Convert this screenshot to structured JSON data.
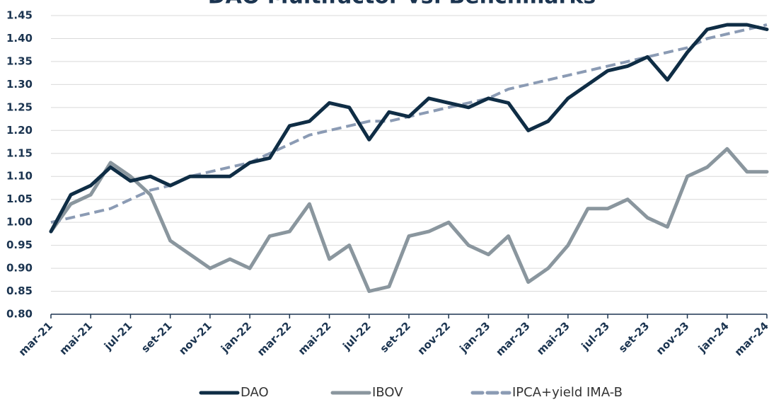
{
  "chart_data": {
    "type": "line",
    "title": "DAO Multifactor vs. Benchmarks",
    "categories": [
      "mar-21",
      null,
      "mai-21",
      null,
      "jul-21",
      null,
      "set-21",
      null,
      "nov-21",
      null,
      "jan-22",
      null,
      "mar-22",
      null,
      "mai-22",
      null,
      "jul-22",
      null,
      "set-22",
      null,
      "nov-22",
      null,
      "jan-23",
      null,
      "mar-23",
      null,
      "mai-23",
      null,
      "jul-23",
      null,
      "set-23",
      null,
      "nov-23",
      null,
      "jan-24",
      null,
      "mar-24"
    ],
    "series": [
      {
        "name": "DAO",
        "color": "#0f2d45",
        "dashed": false,
        "values": [
          0.98,
          1.06,
          1.08,
          1.12,
          1.09,
          1.1,
          1.08,
          1.1,
          1.1,
          1.1,
          1.13,
          1.14,
          1.21,
          1.22,
          1.26,
          1.25,
          1.18,
          1.24,
          1.23,
          1.27,
          1.26,
          1.25,
          1.27,
          1.26,
          1.2,
          1.22,
          1.27,
          1.3,
          1.33,
          1.34,
          1.36,
          1.31,
          1.37,
          1.42,
          1.43,
          1.43,
          1.42
        ]
      },
      {
        "name": "IBOV",
        "color": "#8a969e",
        "dashed": false,
        "values": [
          0.98,
          1.04,
          1.06,
          1.13,
          1.1,
          1.06,
          0.96,
          0.93,
          0.9,
          0.92,
          0.9,
          0.97,
          0.98,
          1.04,
          0.92,
          0.95,
          0.85,
          0.86,
          0.97,
          0.98,
          1.0,
          0.95,
          0.93,
          0.97,
          0.87,
          0.9,
          0.95,
          1.03,
          1.03,
          1.05,
          1.01,
          0.99,
          1.1,
          1.12,
          1.16,
          1.11,
          1.11
        ]
      },
      {
        "name": "IPCA+yield IMA-B",
        "color": "#8b9bb4",
        "dashed": true,
        "values": [
          1.0,
          1.01,
          1.02,
          1.03,
          1.05,
          1.07,
          1.08,
          1.1,
          1.11,
          1.12,
          1.13,
          1.15,
          1.17,
          1.19,
          1.2,
          1.21,
          1.22,
          1.22,
          1.23,
          1.24,
          1.25,
          1.26,
          1.27,
          1.29,
          1.3,
          1.31,
          1.32,
          1.33,
          1.34,
          1.35,
          1.36,
          1.37,
          1.38,
          1.4,
          1.41,
          1.42,
          1.43
        ]
      }
    ],
    "ylim": [
      0.8,
      1.45
    ],
    "yticks": [
      {
        "value": 0.8,
        "label": "0.80"
      },
      0.85,
      {
        "value": 0.9,
        "label": "0.90"
      },
      0.95,
      {
        "value": 1.0,
        "label": "1.00"
      },
      1.05,
      {
        "value": 1.1,
        "label": "1.10"
      },
      1.15,
      {
        "value": 1.2,
        "label": "1.20"
      },
      1.25,
      {
        "value": 1.3,
        "label": "1.30"
      },
      1.35,
      {
        "value": 1.4,
        "label": "1.40"
      },
      1.45
    ],
    "grid": true,
    "legend": "bottom"
  }
}
